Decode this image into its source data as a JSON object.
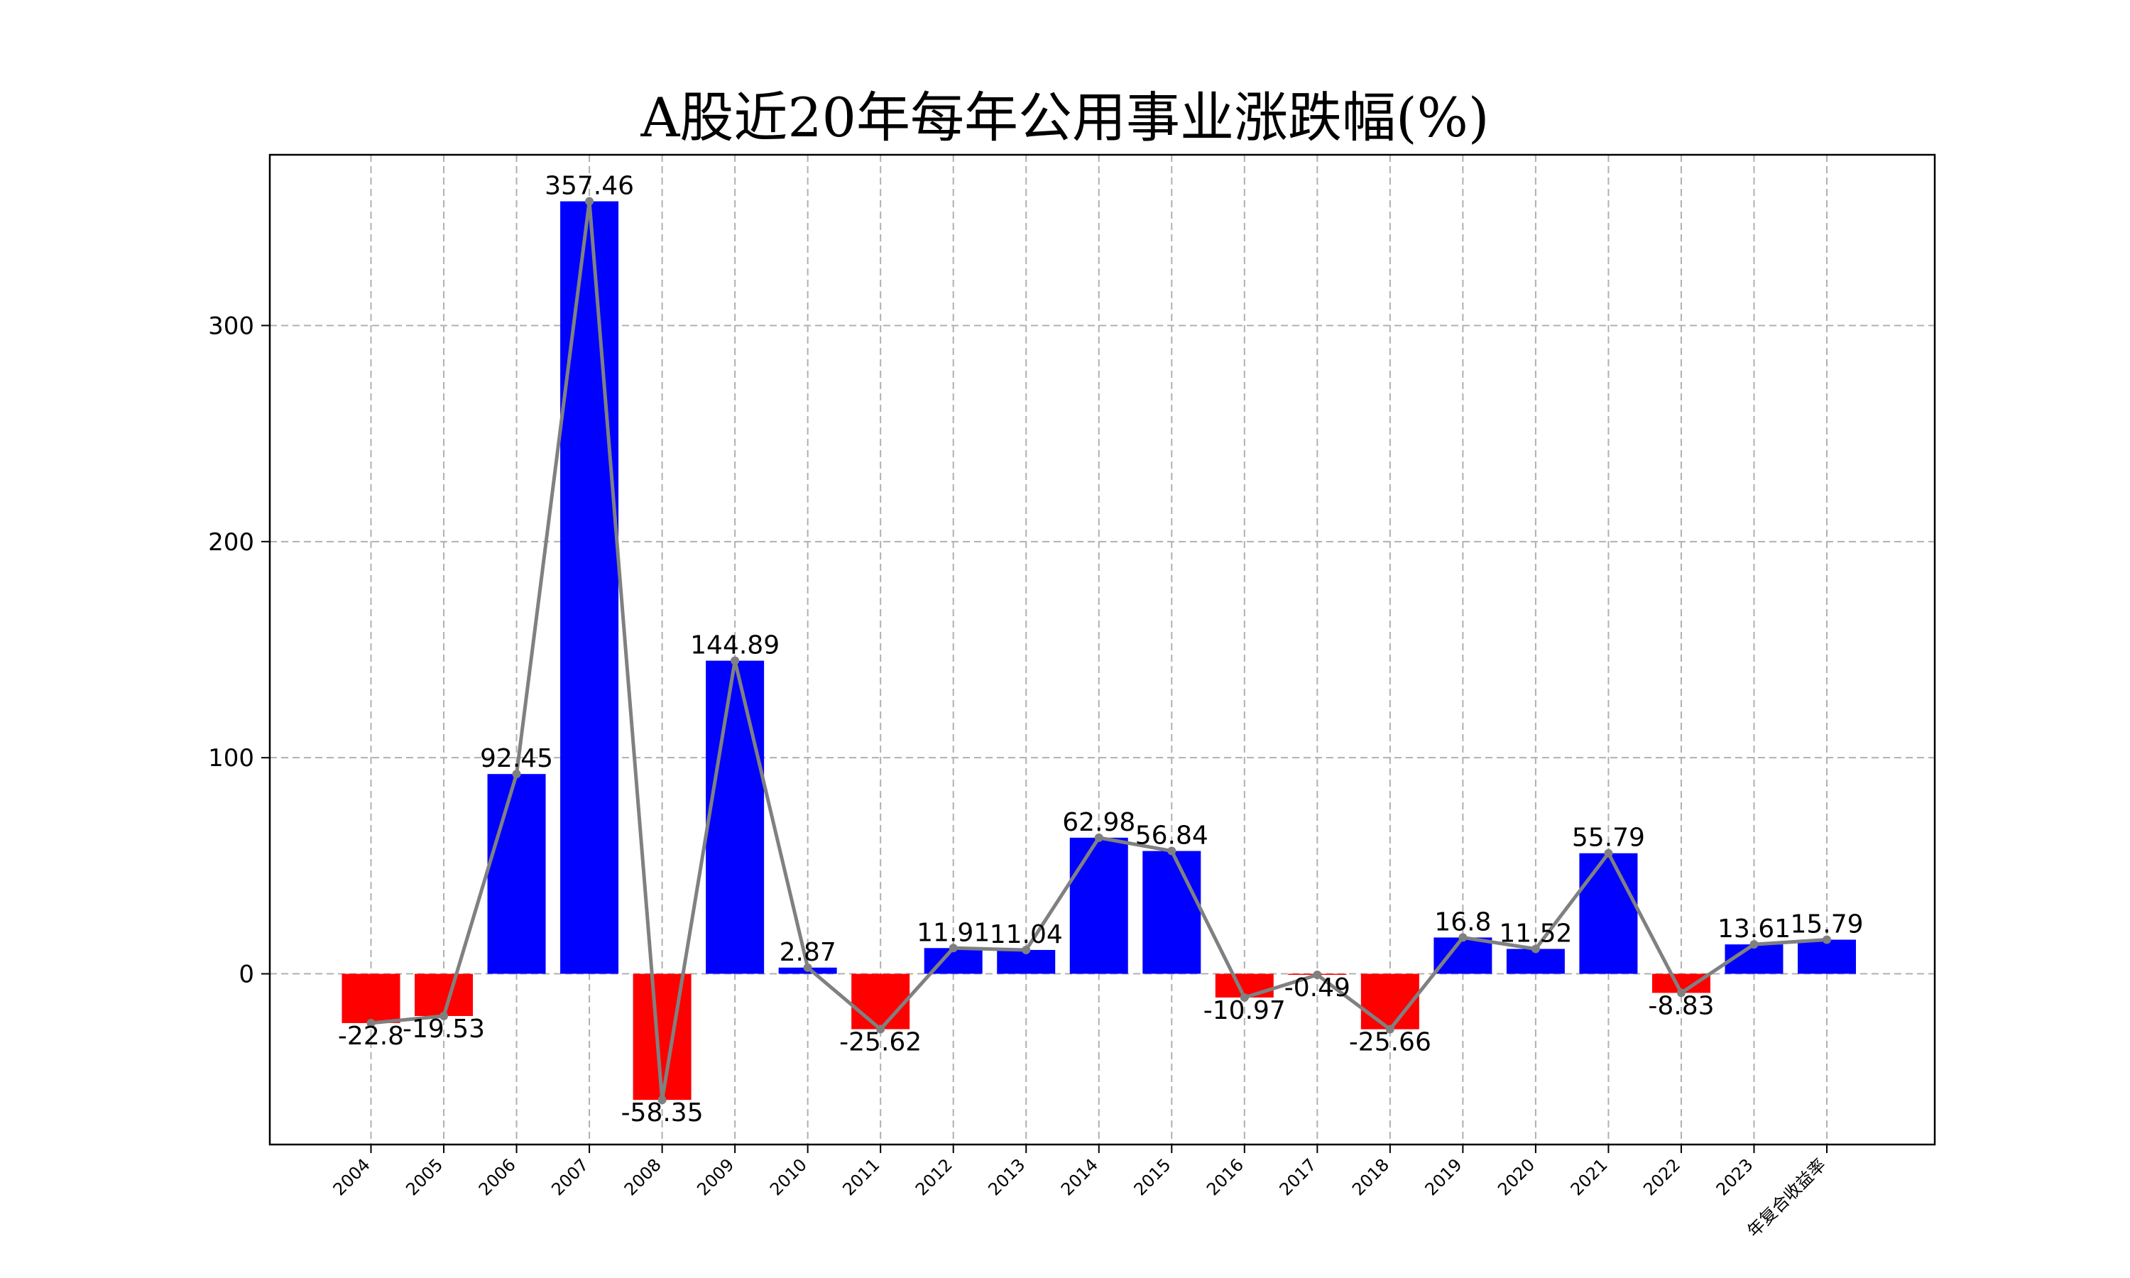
{
  "chart_data": {
    "type": "bar",
    "title": "A股近20年每年公用事业涨跌幅(%)",
    "xlabel": "",
    "ylabel": "",
    "categories": [
      "2004",
      "2005",
      "2006",
      "2007",
      "2008",
      "2009",
      "2010",
      "2011",
      "2012",
      "2013",
      "2014",
      "2015",
      "2016",
      "2017",
      "2018",
      "2019",
      "2020",
      "2021",
      "2022",
      "2023",
      "年复合收益率"
    ],
    "values": [
      -22.8,
      -19.53,
      92.45,
      357.46,
      -58.35,
      144.89,
      2.87,
      -25.62,
      11.91,
      11.04,
      62.98,
      56.84,
      -10.97,
      -0.49,
      -25.66,
      16.8,
      11.52,
      55.79,
      -8.83,
      13.61,
      15.79
    ],
    "ylim": [
      -79,
      379
    ],
    "yticks": [
      0,
      100,
      200,
      300
    ],
    "grid": true,
    "overlay_line": true,
    "colors": {
      "positive": "#0000ff",
      "negative": "#ff0000",
      "line": "#808080"
    }
  }
}
